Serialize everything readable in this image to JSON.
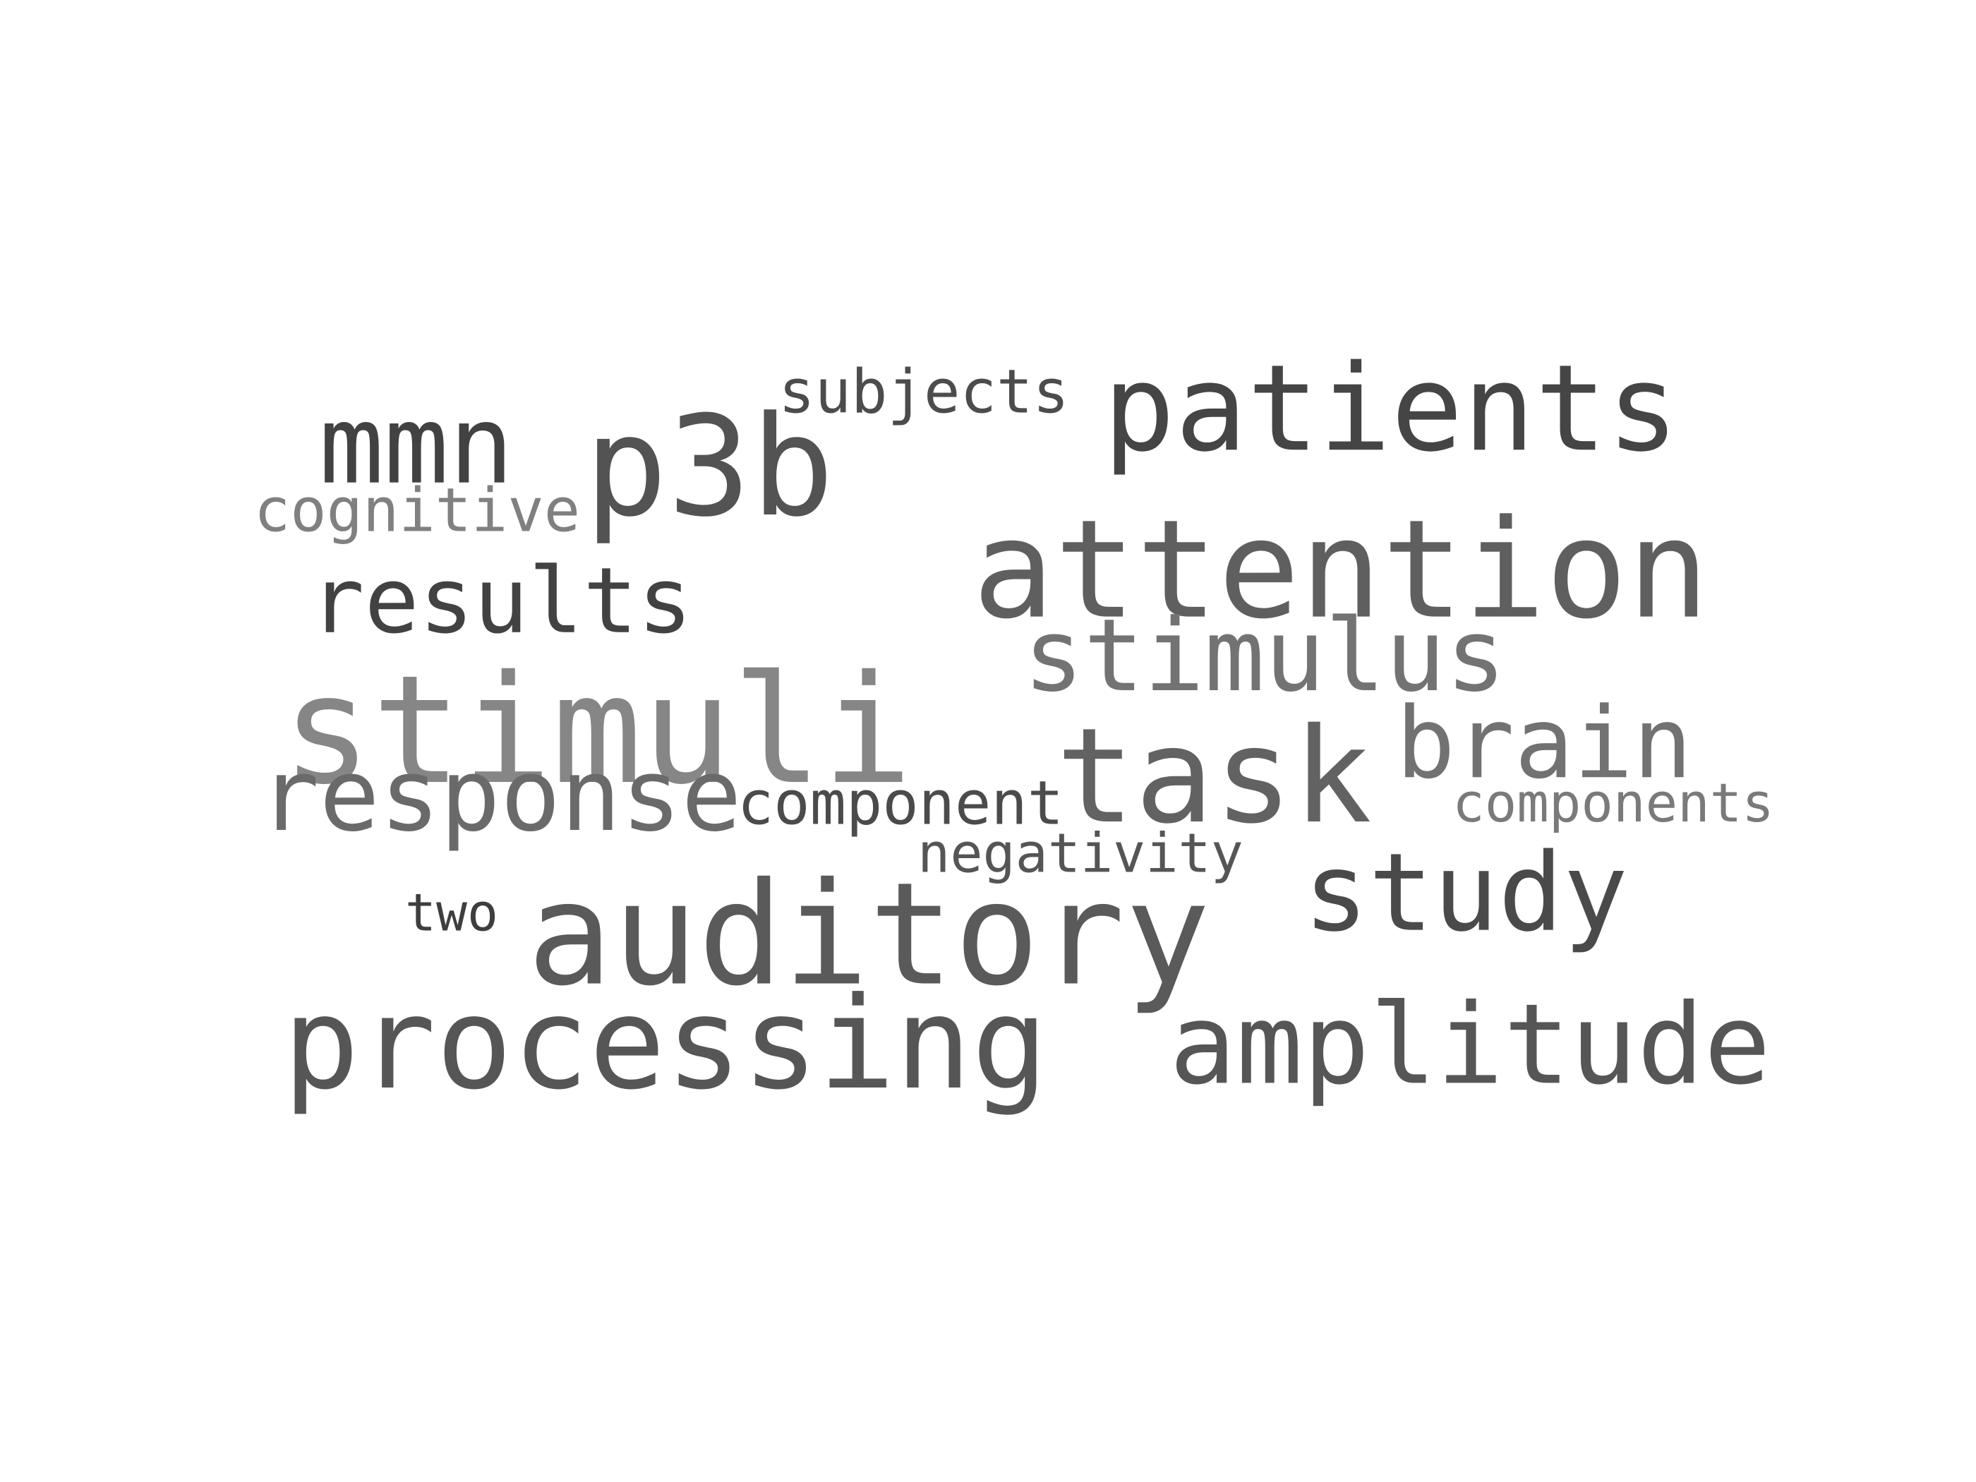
{
  "word_cloud": {
    "words": [
      {
        "text": "stimuli",
        "color": "#868686"
      },
      {
        "text": "attention",
        "color": "#5f5f5f"
      },
      {
        "text": "task",
        "color": "#626262"
      },
      {
        "text": "auditory",
        "color": "#5a5a5a"
      },
      {
        "text": "p3b",
        "color": "#535353"
      },
      {
        "text": "patients",
        "color": "#454545"
      },
      {
        "text": "processing",
        "color": "#565656"
      },
      {
        "text": "amplitude",
        "color": "#565656"
      },
      {
        "text": "response",
        "color": "#6a6a6a"
      },
      {
        "text": "stimulus",
        "color": "#737373"
      },
      {
        "text": "brain",
        "color": "#727272"
      },
      {
        "text": "study",
        "color": "#4a4a4a"
      },
      {
        "text": "mmn",
        "color": "#424242"
      },
      {
        "text": "results",
        "color": "#424242"
      },
      {
        "text": "cognitive",
        "color": "#808080"
      },
      {
        "text": "subjects",
        "color": "#4c4c4c"
      },
      {
        "text": "component",
        "color": "#4b4b4b"
      },
      {
        "text": "components",
        "color": "#7a7a7a"
      },
      {
        "text": "negativity",
        "color": "#555555"
      },
      {
        "text": "two",
        "color": "#3e3e3e"
      }
    ]
  }
}
